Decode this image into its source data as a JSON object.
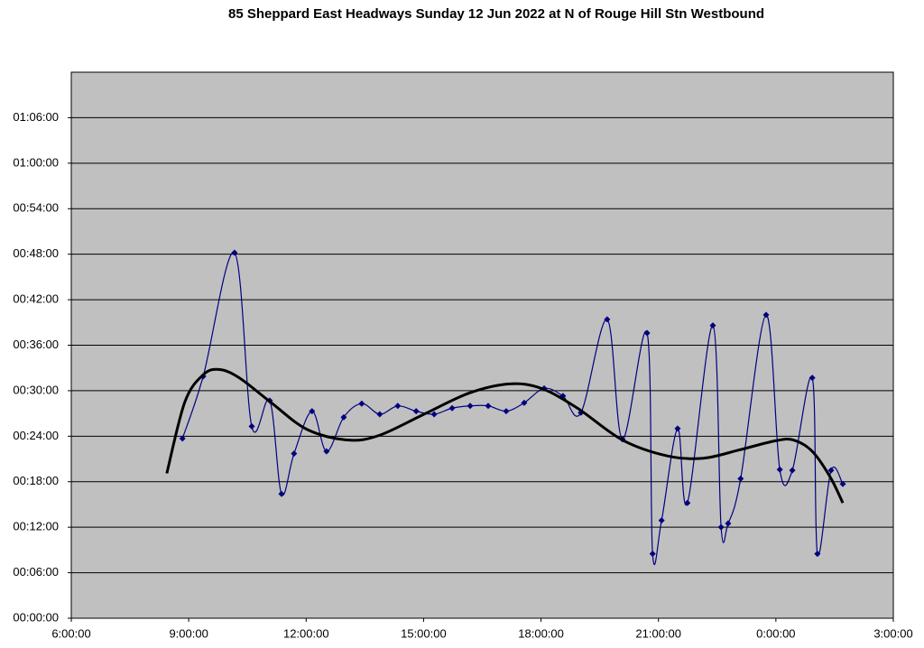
{
  "chart_data": {
    "type": "line",
    "title": "85 Sheppard East Headways Sunday 12 Jun 2022 at N of Rouge Hill Stn Westbound",
    "xlim": [
      6,
      27
    ],
    "xticks": [
      {
        "value": 6,
        "label": "6:00:00"
      },
      {
        "value": 9,
        "label": "9:00:00"
      },
      {
        "value": 12,
        "label": "12:00:00"
      },
      {
        "value": 15,
        "label": "15:00:00"
      },
      {
        "value": 18,
        "label": "18:00:00"
      },
      {
        "value": 21,
        "label": "21:00:00"
      },
      {
        "value": 24,
        "label": "0:00:00"
      },
      {
        "value": 27,
        "label": "3:00:00"
      }
    ],
    "ylim": [
      0,
      72
    ],
    "yticks": [
      {
        "value": 0,
        "label": "00:00:00"
      },
      {
        "value": 6,
        "label": "00:06:00"
      },
      {
        "value": 12,
        "label": "00:12:00"
      },
      {
        "value": 18,
        "label": "00:18:00"
      },
      {
        "value": 24,
        "label": "00:24:00"
      },
      {
        "value": 30,
        "label": "00:30:00"
      },
      {
        "value": 36,
        "label": "00:36:00"
      },
      {
        "value": 42,
        "label": "00:42:00"
      },
      {
        "value": 48,
        "label": "00:48:00"
      },
      {
        "value": 54,
        "label": "00:54:00"
      },
      {
        "value": 60,
        "label": "01:00:00"
      },
      {
        "value": 66,
        "label": "01:06:00"
      }
    ],
    "grid": true,
    "background": "#c0c0c0",
    "series": [
      {
        "color": "#000080",
        "marker": "diamond",
        "line_width": 1.2,
        "smooth": true,
        "x": [
          8.84,
          9.37,
          10.17,
          10.61,
          11.07,
          11.37,
          11.69,
          12.15,
          12.52,
          12.96,
          13.42,
          13.88,
          14.34,
          14.81,
          15.27,
          15.73,
          16.19,
          16.65,
          17.11,
          17.57,
          18.08,
          18.56,
          19.02,
          19.69,
          20.08,
          20.71,
          20.85,
          21.08,
          21.49,
          21.74,
          22.39,
          22.6,
          22.78,
          23.1,
          23.75,
          24.1,
          24.42,
          24.93,
          25.06,
          25.41,
          25.71
        ],
        "values": [
          23.7,
          31.9,
          48.2,
          25.3,
          28.7,
          16.4,
          21.7,
          27.3,
          22.0,
          26.5,
          28.3,
          26.9,
          28.0,
          27.3,
          26.9,
          27.7,
          28.0,
          28.0,
          27.3,
          28.4,
          30.3,
          29.3,
          27.1,
          39.4,
          23.6,
          37.6,
          8.5,
          12.9,
          25.0,
          15.2,
          38.6,
          12.0,
          12.5,
          18.4,
          40.0,
          19.6,
          19.5,
          31.7,
          8.5,
          19.5,
          17.7
        ]
      },
      {
        "color": "#000000",
        "line_width": 3,
        "smooth": true,
        "x": [
          8.44,
          8.9,
          9.37,
          9.78,
          10.29,
          11.09,
          12.02,
          13.05,
          13.86,
          15.01,
          16.17,
          17.2,
          18.01,
          18.93,
          20.08,
          21.23,
          22.15,
          23.07,
          23.99,
          24.45,
          24.93,
          25.39,
          25.71
        ],
        "values": [
          19.1,
          28.5,
          32.1,
          32.8,
          31.7,
          28.5,
          24.9,
          23.5,
          24.1,
          26.9,
          29.7,
          30.9,
          30.3,
          27.7,
          23.5,
          21.4,
          21.1,
          22.2,
          23.4,
          23.5,
          22.0,
          18.6,
          15.2
        ]
      }
    ]
  }
}
